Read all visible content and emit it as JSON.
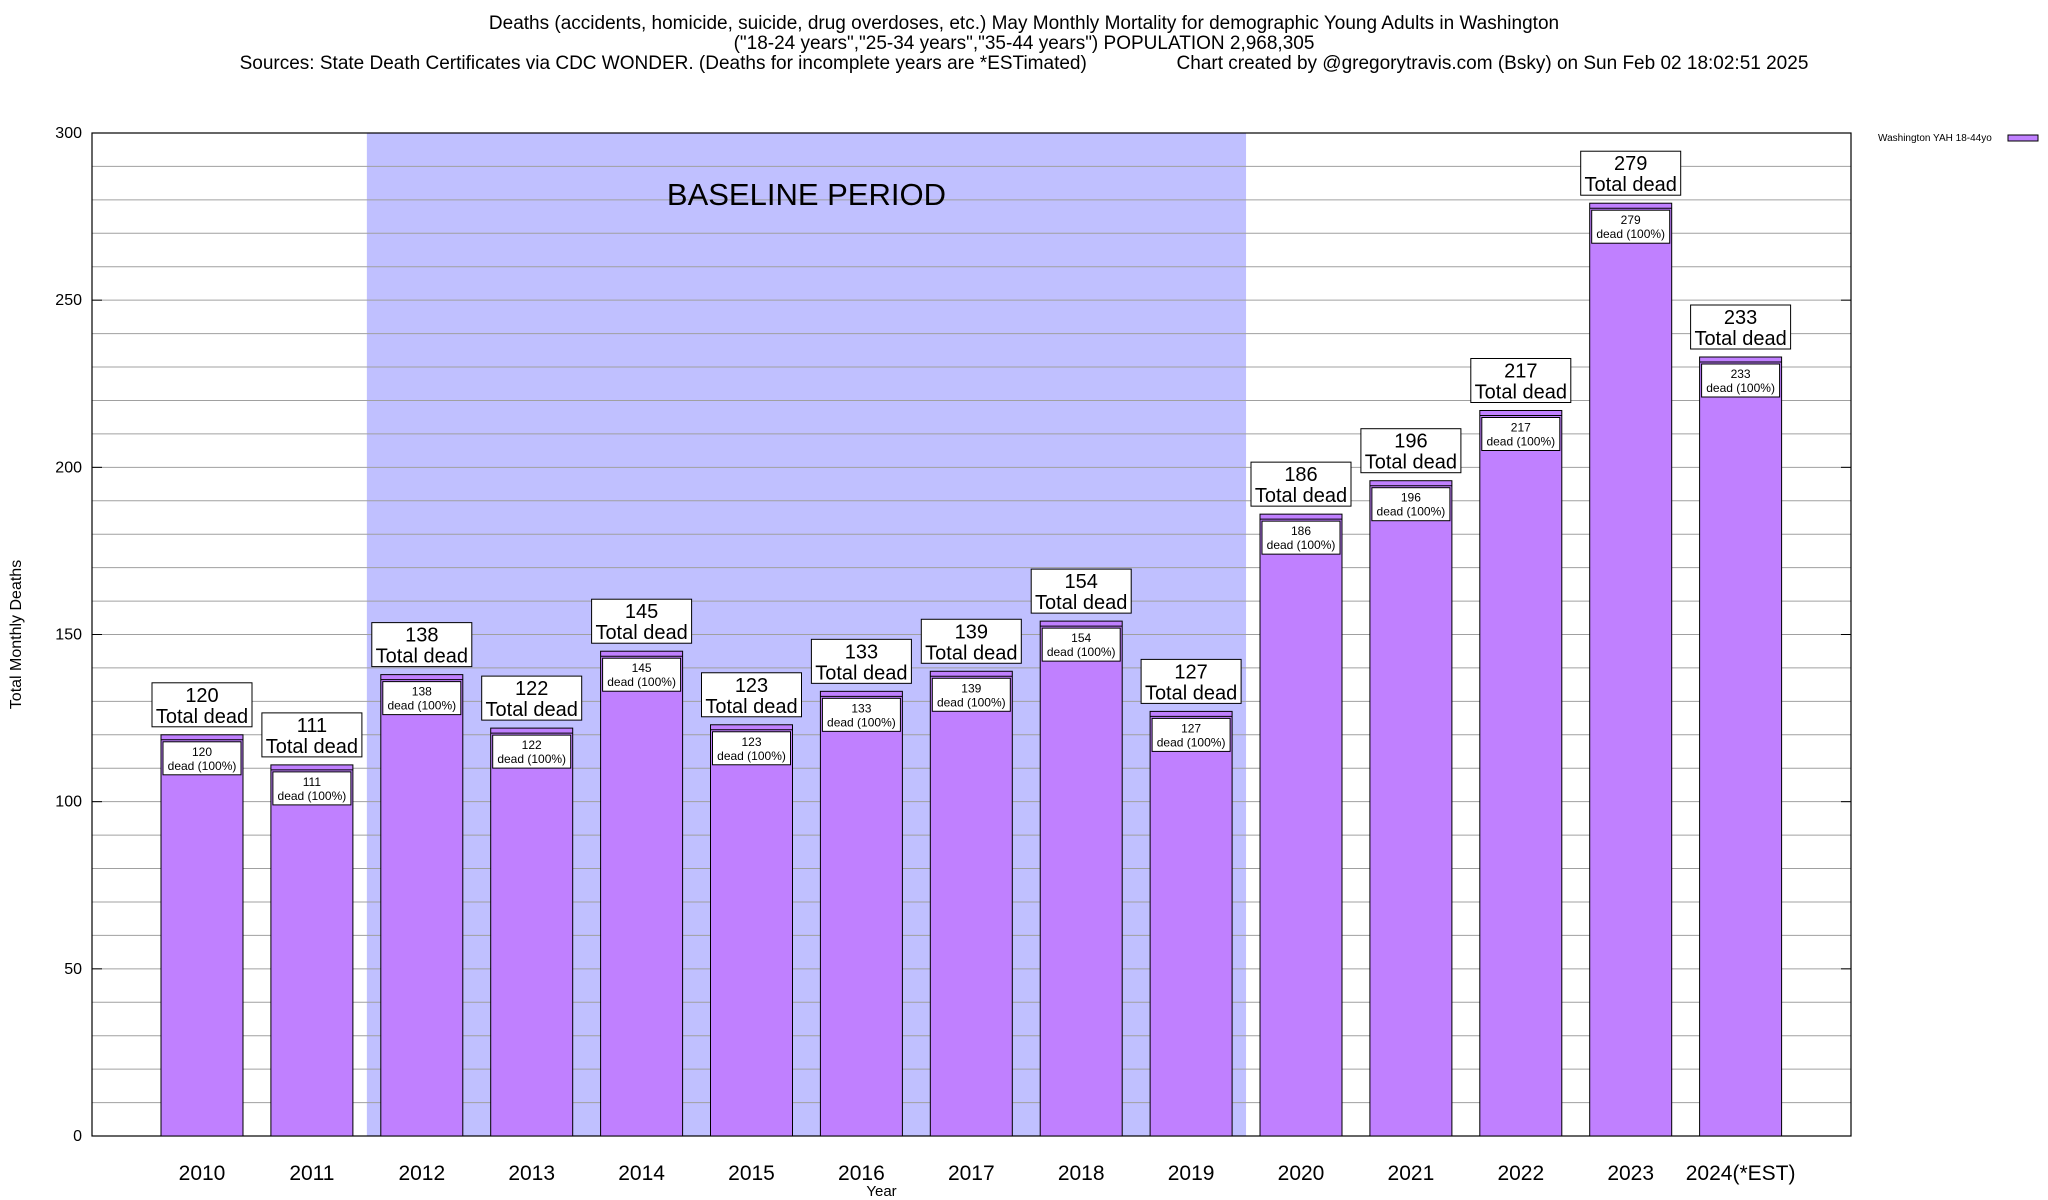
{
  "title_lines": [
    "Deaths (accidents, homicide, suicide, drug overdoses, etc.) May Monthly Mortality for demographic Young Adults in Washington",
    "(\"18-24 years\",\"25-34 years\",\"35-44 years\") POPULATION 2,968,305",
    "Sources: State Death Certificates via CDC WONDER. (Deaths for incomplete years are *ESTimated)                 Chart created by @gregorytravis.com (Bsky) on Sun Feb 02 18:02:51 2025"
  ],
  "colors": {
    "bar": "#c080ff",
    "baseline_shade": "#c0c0ff",
    "grid": "#a0a0a0"
  },
  "chart_data": {
    "type": "bar",
    "xlabel": "Year",
    "ylabel": "Total Monthly Deaths",
    "ylim": [
      0,
      300
    ],
    "yticks": [
      0,
      50,
      100,
      150,
      200,
      250,
      300
    ],
    "y_minor_step": 10,
    "grid": true,
    "legend_position": "top-right-outside",
    "categories": [
      "2010",
      "2011",
      "2012",
      "2013",
      "2014",
      "2015",
      "2016",
      "2017",
      "2018",
      "2019",
      "2020",
      "2021",
      "2022",
      "2023",
      "2024(*EST)"
    ],
    "series": [
      {
        "name": "Washington YAH 18-44yo",
        "values": [
          120,
          111,
          138,
          122,
          145,
          123,
          133,
          139,
          154,
          127,
          186,
          196,
          217,
          279,
          233
        ]
      }
    ],
    "bar_labels": {
      "outer_suffix": "Total dead",
      "inner_suffix": "dead (100%)"
    },
    "annotation": {
      "text": "BASELINE PERIOD",
      "from_category": "2012",
      "to_category": "2019"
    }
  }
}
